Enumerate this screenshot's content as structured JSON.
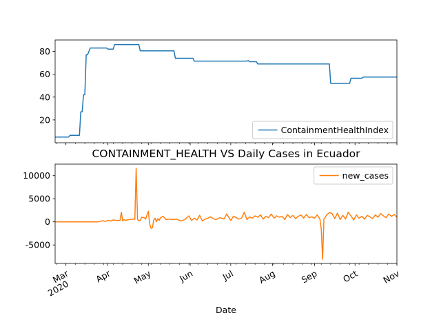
{
  "chart_data": [
    {
      "type": "line",
      "title": "",
      "xlabel": "",
      "ylabel": "",
      "xlim": [
        "2020-02-22",
        "2020-11-01"
      ],
      "ylim": [
        0,
        90
      ],
      "yticks": [
        20,
        40,
        60,
        80
      ],
      "legend": "lower right",
      "grid": false,
      "series": [
        {
          "name": "ContainmentHealthIndex",
          "color": "#1f77b4",
          "x": [
            "2020-02-22",
            "2020-03-03",
            "2020-03-04",
            "2020-03-11",
            "2020-03-12",
            "2020-03-13",
            "2020-03-14",
            "2020-03-15",
            "2020-03-16",
            "2020-03-17",
            "2020-03-18",
            "2020-03-19",
            "2020-03-20",
            "2020-03-21",
            "2020-03-22",
            "2020-03-31",
            "2020-04-01",
            "2020-04-05",
            "2020-04-06",
            "2020-04-24",
            "2020-04-25",
            "2020-05-20",
            "2020-05-21",
            "2020-06-03",
            "2020-06-04",
            "2020-07-13",
            "2020-07-14",
            "2020-07-15",
            "2020-07-20",
            "2020-07-21",
            "2020-09-12",
            "2020-09-13",
            "2020-09-27",
            "2020-09-28",
            "2020-10-06",
            "2020-10-07",
            "2020-11-01"
          ],
          "y": [
            5,
            5,
            6.5,
            6.5,
            27,
            27,
            42,
            42,
            77,
            77,
            80,
            83,
            83,
            83,
            83,
            83,
            82,
            82,
            86,
            86,
            80.5,
            80.5,
            74,
            74,
            71.5,
            71.5,
            72,
            71,
            71,
            69,
            69,
            52,
            52,
            56.5,
            56.5,
            57.5,
            57.5
          ]
        }
      ]
    },
    {
      "type": "line",
      "title": "CONTAINMENT_HEALTH VS Daily Cases in Ecuador",
      "xlabel": "Date",
      "ylabel": "",
      "xlim": [
        "2020-02-22",
        "2020-11-01"
      ],
      "ylim": [
        -9000,
        12500
      ],
      "yticks": [
        -5000,
        0,
        5000,
        10000
      ],
      "xticks": [
        {
          "date": "2020-03-01",
          "label": "Mar",
          "sublabel": "2020"
        },
        {
          "date": "2020-04-01",
          "label": "Apr",
          "sublabel": ""
        },
        {
          "date": "2020-05-01",
          "label": "May",
          "sublabel": ""
        },
        {
          "date": "2020-06-01",
          "label": "Jun",
          "sublabel": ""
        },
        {
          "date": "2020-07-01",
          "label": "Jul",
          "sublabel": ""
        },
        {
          "date": "2020-08-01",
          "label": "Aug",
          "sublabel": ""
        },
        {
          "date": "2020-09-01",
          "label": "Sep",
          "sublabel": ""
        },
        {
          "date": "2020-10-01",
          "label": "Oct",
          "sublabel": ""
        },
        {
          "date": "2020-11-01",
          "label": "Nov",
          "sublabel": ""
        }
      ],
      "legend": "upper right",
      "grid": false,
      "series": [
        {
          "name": "new_cases",
          "color": "#ff7f0e",
          "x": [
            "2020-02-22",
            "2020-03-01",
            "2020-03-10",
            "2020-03-20",
            "2020-03-25",
            "2020-03-27",
            "2020-03-28",
            "2020-03-30",
            "2020-04-01",
            "2020-04-03",
            "2020-04-05",
            "2020-04-08",
            "2020-04-10",
            "2020-04-11",
            "2020-04-12",
            "2020-04-13",
            "2020-04-14",
            "2020-04-15",
            "2020-04-17",
            "2020-04-19",
            "2020-04-21",
            "2020-04-22",
            "2020-04-23",
            "2020-04-24",
            "2020-04-25",
            "2020-04-26",
            "2020-04-28",
            "2020-04-29",
            "2020-04-30",
            "2020-05-01",
            "2020-05-02",
            "2020-05-03",
            "2020-05-04",
            "2020-05-05",
            "2020-05-06",
            "2020-05-07",
            "2020-05-08",
            "2020-05-09",
            "2020-05-10",
            "2020-05-12",
            "2020-05-14",
            "2020-05-16",
            "2020-05-19",
            "2020-05-22",
            "2020-05-25",
            "2020-05-28",
            "2020-05-31",
            "2020-06-02",
            "2020-06-04",
            "2020-06-06",
            "2020-06-08",
            "2020-06-10",
            "2020-06-12",
            "2020-06-14",
            "2020-06-16",
            "2020-06-18",
            "2020-06-20",
            "2020-06-23",
            "2020-06-26",
            "2020-06-28",
            "2020-07-01",
            "2020-07-03",
            "2020-07-05",
            "2020-07-07",
            "2020-07-09",
            "2020-07-11",
            "2020-07-13",
            "2020-07-15",
            "2020-07-17",
            "2020-07-19",
            "2020-07-21",
            "2020-07-23",
            "2020-07-25",
            "2020-07-27",
            "2020-07-29",
            "2020-07-31",
            "2020-08-02",
            "2020-08-04",
            "2020-08-06",
            "2020-08-08",
            "2020-08-10",
            "2020-08-12",
            "2020-08-14",
            "2020-08-16",
            "2020-08-18",
            "2020-08-20",
            "2020-08-22",
            "2020-08-24",
            "2020-08-26",
            "2020-08-28",
            "2020-08-30",
            "2020-09-01",
            "2020-09-03",
            "2020-09-05",
            "2020-09-06",
            "2020-09-07",
            "2020-09-08",
            "2020-09-09",
            "2020-09-10",
            "2020-09-12",
            "2020-09-14",
            "2020-09-16",
            "2020-09-18",
            "2020-09-20",
            "2020-09-22",
            "2020-09-24",
            "2020-09-26",
            "2020-09-28",
            "2020-09-30",
            "2020-10-02",
            "2020-10-04",
            "2020-10-06",
            "2020-10-08",
            "2020-10-10",
            "2020-10-12",
            "2020-10-14",
            "2020-10-16",
            "2020-10-18",
            "2020-10-20",
            "2020-10-22",
            "2020-10-24",
            "2020-10-26",
            "2020-10-28",
            "2020-10-30",
            "2020-11-01"
          ],
          "y": [
            0,
            0,
            0,
            0,
            0,
            150,
            250,
            100,
            300,
            200,
            400,
            300,
            300,
            2100,
            200,
            500,
            300,
            400,
            500,
            600,
            550,
            11600,
            500,
            200,
            300,
            1000,
            900,
            600,
            1500,
            2300,
            -400,
            -1400,
            -1300,
            400,
            800,
            0,
            700,
            300,
            900,
            1200,
            500,
            600,
            500,
            600,
            200,
            500,
            1300,
            300,
            800,
            400,
            1400,
            200,
            600,
            800,
            1100,
            700,
            500,
            900,
            600,
            1700,
            300,
            1200,
            900,
            600,
            800,
            2100,
            500,
            1100,
            800,
            1300,
            1000,
            1500,
            600,
            1200,
            900,
            1700,
            800,
            1300,
            1000,
            1200,
            500,
            1600,
            900,
            1400,
            700,
            1200,
            1500,
            800,
            1600,
            900,
            1100,
            800,
            1500,
            600,
            -1500,
            -8100,
            700,
            1000,
            1500,
            2000,
            1800,
            700,
            1900,
            500,
            1400,
            600,
            2100,
            1300,
            400,
            1500,
            800,
            1200,
            600,
            1400,
            1100,
            700,
            1500,
            1000,
            1800,
            1300,
            900,
            1700,
            1200,
            1600,
            1000
          ]
        }
      ]
    }
  ]
}
